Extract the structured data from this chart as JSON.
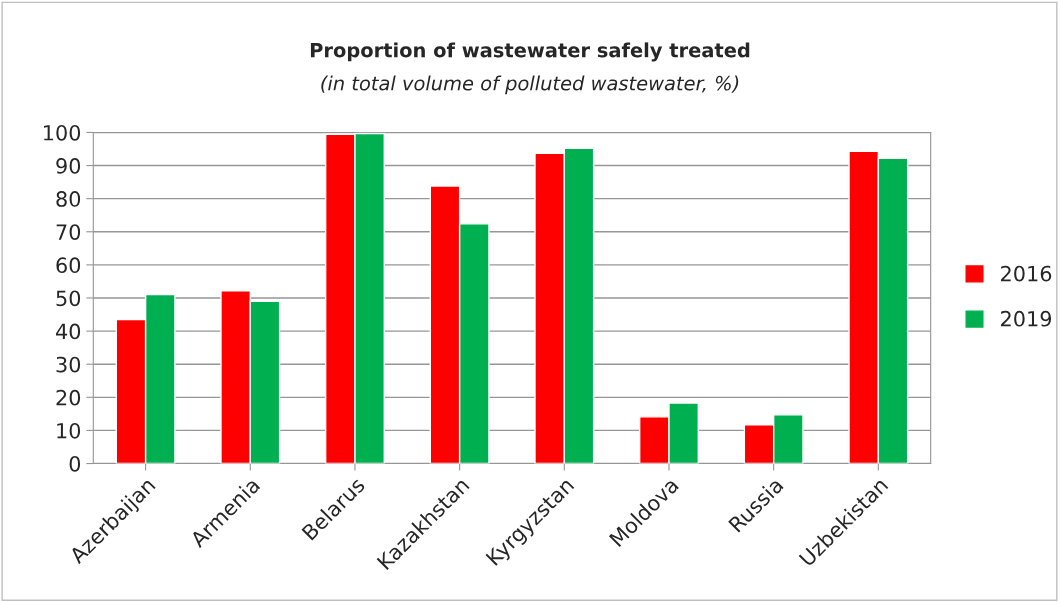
{
  "chart_data": {
    "type": "bar",
    "title": "Proportion of wastewater safely treated",
    "subtitle": "(in total volume of polluted wastewater, %)",
    "categories": [
      "Azerbaijan",
      "Armenia",
      "Belarus",
      "Kazakhstan",
      "Kyrgyzstan",
      "Moldova",
      "Russia",
      "Uzbekistan"
    ],
    "series": [
      {
        "name": "2016",
        "color": "#ff0000",
        "values": [
          43.5,
          52.2,
          99.4,
          83.8,
          93.7,
          14.1,
          11.7,
          94.3
        ]
      },
      {
        "name": "2019",
        "color": "#00b050",
        "values": [
          51,
          49,
          99.7,
          72.4,
          95.2,
          18.3,
          14.7,
          92.2
        ]
      }
    ],
    "ylim": [
      0,
      100
    ],
    "yticks": [
      0,
      10,
      20,
      30,
      40,
      50,
      60,
      70,
      80,
      90,
      100
    ],
    "grid": "y",
    "legend": "right"
  }
}
